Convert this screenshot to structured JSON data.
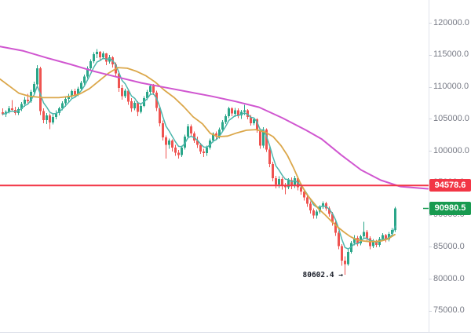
{
  "chart_data": {
    "type": "candlestick",
    "title": "",
    "background": "#ffffff",
    "grid": "off",
    "ylim": [
      71500,
      123500
    ],
    "price_axis": {
      "side": "right",
      "text_color": "#787b86",
      "border_color": "#e0e3eb",
      "tick_dash_color": "#d1d4dc",
      "ticks": [
        {
          "label": "120000.0",
          "price": 120000
        },
        {
          "label": "115000.0",
          "price": 115000
        },
        {
          "label": "110000.0",
          "price": 110000
        },
        {
          "label": "105000.0",
          "price": 105000
        },
        {
          "label": "100000.0",
          "price": 100000
        },
        {
          "label": "95000.0",
          "price": 95000
        },
        {
          "label": "90000.0",
          "price": 90000
        },
        {
          "label": "85000.0",
          "price": 85000
        },
        {
          "label": "80000.0",
          "price": 80000
        },
        {
          "label": "75000.0",
          "price": 75000
        }
      ]
    },
    "horizontal_line": {
      "price": 94578.6,
      "label": "94578.6",
      "color": "#f23645"
    },
    "last_price": {
      "price": 90980.5,
      "label": "90980.5",
      "badge_color": "#189a50"
    },
    "annotation": {
      "text": "80602.4 →",
      "price": 80602.4,
      "points_to": "lowest-wick"
    },
    "series": {
      "up_color": "#2aa689",
      "down_color": "#ef5350",
      "candles_ohlc": [
        [
          106000,
          106600,
          105500,
          105700
        ],
        [
          105700,
          106300,
          105300,
          106100
        ],
        [
          106100,
          107000,
          105800,
          106600
        ],
        [
          106600,
          107900,
          106200,
          106400
        ],
        [
          106400,
          106900,
          105600,
          105900
        ],
        [
          105900,
          106800,
          105600,
          106500
        ],
        [
          106500,
          107600,
          106200,
          107300
        ],
        [
          107300,
          108400,
          106900,
          108000
        ],
        [
          108000,
          108900,
          107400,
          107700
        ],
        [
          107700,
          109500,
          107500,
          109200
        ],
        [
          109200,
          110800,
          108900,
          110400
        ],
        [
          110400,
          113400,
          110100,
          112900
        ],
        [
          112900,
          113100,
          105600,
          106200
        ],
        [
          106200,
          106600,
          104300,
          104800
        ],
        [
          104800,
          105900,
          104200,
          105500
        ],
        [
          105500,
          105800,
          103400,
          104400
        ],
        [
          104400,
          105700,
          104100,
          105300
        ],
        [
          105300,
          106300,
          104900,
          105900
        ],
        [
          105900,
          106900,
          105500,
          106600
        ],
        [
          106600,
          107700,
          106300,
          107400
        ],
        [
          107400,
          108400,
          106900,
          108100
        ],
        [
          108100,
          108900,
          107500,
          108600
        ],
        [
          108600,
          109600,
          108200,
          109300
        ],
        [
          109300,
          109700,
          108400,
          108800
        ],
        [
          108800,
          110000,
          108500,
          109700
        ],
        [
          109700,
          110900,
          109400,
          110600
        ],
        [
          110600,
          111900,
          110300,
          111600
        ],
        [
          111600,
          113200,
          111300,
          112900
        ],
        [
          112900,
          114300,
          112600,
          114000
        ],
        [
          114000,
          115400,
          113700,
          115100
        ],
        [
          115100,
          115900,
          114500,
          115450
        ],
        [
          115450,
          115600,
          114200,
          114600
        ],
        [
          114600,
          115500,
          114300,
          115200
        ],
        [
          115200,
          115300,
          113400,
          113900
        ],
        [
          113900,
          115000,
          113600,
          114600
        ],
        [
          114600,
          114800,
          113000,
          113500
        ],
        [
          113500,
          113800,
          111600,
          112100
        ],
        [
          112100,
          112400,
          109200,
          109800
        ],
        [
          109800,
          110300,
          108000,
          108500
        ],
        [
          108500,
          109700,
          108200,
          109400
        ],
        [
          109400,
          109600,
          107200,
          107700
        ],
        [
          107700,
          108200,
          106100,
          106600
        ],
        [
          106600,
          107800,
          106300,
          107500
        ],
        [
          107500,
          107700,
          105400,
          106100
        ],
        [
          106100,
          107300,
          105800,
          107000
        ],
        [
          107000,
          108500,
          106800,
          108200
        ],
        [
          108200,
          109500,
          107900,
          109200
        ],
        [
          109200,
          110400,
          108900,
          110100
        ],
        [
          110100,
          110400,
          108700,
          109100
        ],
        [
          109100,
          109400,
          106200,
          106700
        ],
        [
          106700,
          107000,
          103800,
          104300
        ],
        [
          104300,
          104700,
          101600,
          102100
        ],
        [
          102100,
          102400,
          98800,
          100900
        ],
        [
          100900,
          101900,
          100300,
          101600
        ],
        [
          101600,
          101800,
          99900,
          100500
        ],
        [
          100500,
          100900,
          99200,
          99700
        ],
        [
          99700,
          100100,
          98800,
          99300
        ],
        [
          99300,
          100800,
          99000,
          100500
        ],
        [
          100500,
          102500,
          100200,
          102200
        ],
        [
          102200,
          104200,
          101900,
          103800
        ],
        [
          103800,
          104100,
          102300,
          102700
        ],
        [
          102700,
          103000,
          101200,
          101600
        ],
        [
          101600,
          102200,
          100400,
          100900
        ],
        [
          100900,
          101200,
          99500,
          99900
        ],
        [
          99900,
          100300,
          99000,
          99600
        ],
        [
          99600,
          100800,
          99200,
          100500
        ],
        [
          100500,
          101900,
          100200,
          101600
        ],
        [
          101600,
          102900,
          101300,
          102700
        ],
        [
          102700,
          103000,
          101800,
          102200
        ],
        [
          102200,
          103600,
          101900,
          103300
        ],
        [
          103300,
          104800,
          103000,
          104500
        ],
        [
          104500,
          105700,
          104200,
          105400
        ],
        [
          105400,
          106900,
          105100,
          106600
        ],
        [
          106600,
          106800,
          105400,
          105800
        ],
        [
          105800,
          106700,
          105300,
          106300
        ],
        [
          106300,
          106600,
          105100,
          105500
        ],
        [
          105500,
          106400,
          105000,
          106100
        ],
        [
          106100,
          107200,
          105600,
          106300
        ],
        [
          106300,
          106500,
          104900,
          105300
        ],
        [
          105300,
          105600,
          103900,
          104300
        ],
        [
          104300,
          105200,
          104000,
          104900
        ],
        [
          104900,
          105100,
          102800,
          103200
        ],
        [
          103200,
          103500,
          100300,
          100800
        ],
        [
          100800,
          103700,
          100400,
          103300
        ],
        [
          103300,
          103500,
          99800,
          100200
        ],
        [
          100200,
          100600,
          97400,
          97900
        ],
        [
          97900,
          98300,
          95200,
          95700
        ],
        [
          95700,
          96100,
          94100,
          94700
        ],
        [
          94700,
          96000,
          94200,
          95600
        ],
        [
          95600,
          95900,
          93900,
          94600
        ],
        [
          94600,
          95000,
          93200,
          94300
        ],
        [
          94300,
          95700,
          94000,
          95400
        ],
        [
          95400,
          95800,
          94000,
          94500
        ],
        [
          94500,
          96100,
          94200,
          95700
        ],
        [
          95700,
          95900,
          93800,
          94300
        ],
        [
          94300,
          94700,
          93100,
          93600
        ],
        [
          93600,
          94000,
          92200,
          92700
        ],
        [
          92700,
          93100,
          91200,
          91700
        ],
        [
          91700,
          92100,
          90200,
          90700
        ],
        [
          90700,
          91000,
          89400,
          89900
        ],
        [
          89900,
          90800,
          89400,
          90500
        ],
        [
          90500,
          91500,
          90200,
          91200
        ],
        [
          91200,
          92100,
          90900,
          91800
        ],
        [
          91800,
          92000,
          90600,
          91000
        ],
        [
          91000,
          91300,
          89700,
          90100
        ],
        [
          90100,
          90400,
          88300,
          88800
        ],
        [
          88800,
          89100,
          86700,
          87200
        ],
        [
          87200,
          87500,
          84600,
          85100
        ],
        [
          85100,
          85400,
          82000,
          82800
        ],
        [
          82800,
          83500,
          80602.4,
          82300
        ],
        [
          82300,
          84600,
          82000,
          84200
        ],
        [
          84200,
          85900,
          83900,
          85600
        ],
        [
          85600,
          86800,
          85200,
          86400
        ],
        [
          86400,
          86700,
          85100,
          85500
        ],
        [
          85500,
          86900,
          85200,
          86600
        ],
        [
          86600,
          88900,
          86300,
          87300
        ],
        [
          87300,
          87600,
          85900,
          86300
        ],
        [
          86300,
          86600,
          84600,
          85100
        ],
        [
          85100,
          86200,
          84800,
          85900
        ],
        [
          85900,
          86100,
          84900,
          85300
        ],
        [
          85300,
          86500,
          85000,
          86200
        ],
        [
          86200,
          87100,
          85900,
          86800
        ],
        [
          86800,
          87000,
          85700,
          86100
        ],
        [
          86100,
          87300,
          85800,
          87000
        ],
        [
          87000,
          87900,
          86500,
          87600
        ],
        [
          87600,
          91250,
          87300,
          90980.5
        ]
      ]
    },
    "moving_averages": [
      {
        "name": "ma-fast",
        "color": "#4db6ac",
        "width": 1.5,
        "source": "ema-of-closes",
        "period": 5
      },
      {
        "name": "ma-mid",
        "color": "#dba74a",
        "width": 1.8,
        "points_x_price": [
          [
            0,
            111200
          ],
          [
            12,
            110100
          ],
          [
            24,
            109000
          ],
          [
            38,
            108500
          ],
          [
            55,
            108300
          ],
          [
            75,
            108300
          ],
          [
            90,
            108500
          ],
          [
            102,
            108900
          ],
          [
            114,
            109700
          ],
          [
            126,
            110900
          ],
          [
            138,
            112100
          ],
          [
            150,
            113000
          ],
          [
            162,
            112900
          ],
          [
            174,
            112400
          ],
          [
            186,
            111700
          ],
          [
            198,
            110700
          ],
          [
            210,
            109400
          ],
          [
            222,
            108300
          ],
          [
            234,
            106900
          ],
          [
            246,
            105300
          ],
          [
            258,
            104200
          ],
          [
            268,
            102700
          ],
          [
            278,
            102200
          ],
          [
            290,
            102300
          ],
          [
            302,
            102800
          ],
          [
            314,
            103200
          ],
          [
            326,
            103300
          ],
          [
            338,
            102900
          ],
          [
            348,
            102200
          ],
          [
            358,
            100800
          ],
          [
            366,
            99300
          ],
          [
            374,
            97300
          ],
          [
            382,
            95100
          ],
          [
            390,
            93300
          ],
          [
            398,
            92100
          ],
          [
            406,
            90900
          ],
          [
            414,
            90000
          ],
          [
            422,
            89000
          ],
          [
            430,
            88100
          ],
          [
            438,
            87300
          ],
          [
            446,
            86600
          ],
          [
            454,
            86100
          ],
          [
            462,
            85900
          ],
          [
            470,
            85800
          ],
          [
            478,
            85800
          ],
          [
            486,
            85900
          ],
          [
            494,
            86200
          ],
          [
            503,
            86900
          ]
        ]
      },
      {
        "name": "ma-slow",
        "color": "#d056d0",
        "width": 2,
        "points_x_price": [
          [
            0,
            116300
          ],
          [
            30,
            115600
          ],
          [
            60,
            114500
          ],
          [
            90,
            113500
          ],
          [
            120,
            112400
          ],
          [
            150,
            111500
          ],
          [
            180,
            110600
          ],
          [
            210,
            109900
          ],
          [
            240,
            109200
          ],
          [
            270,
            108500
          ],
          [
            300,
            107700
          ],
          [
            330,
            106800
          ],
          [
            360,
            105100
          ],
          [
            390,
            103200
          ],
          [
            410,
            101800
          ],
          [
            435,
            99300
          ],
          [
            460,
            97000
          ],
          [
            485,
            95400
          ],
          [
            510,
            94400
          ],
          [
            545,
            94050
          ]
        ]
      }
    ]
  }
}
